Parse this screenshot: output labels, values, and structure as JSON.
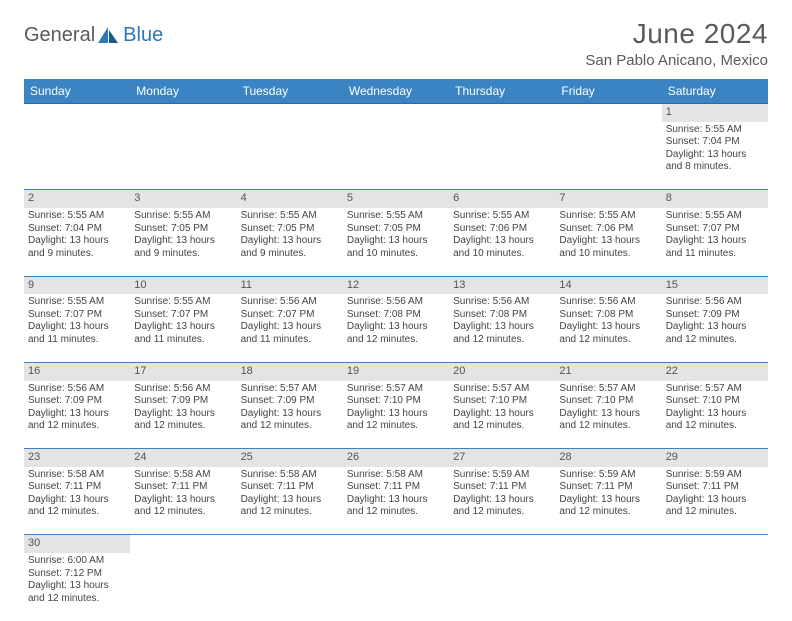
{
  "logo": {
    "general": "General",
    "blue": "Blue"
  },
  "title": "June 2024",
  "location": "San Pablo Anicano, Mexico",
  "colors": {
    "header_bg": "#3a84c4",
    "header_text": "#ffffff",
    "daynum_bg": "#e4e4e4",
    "text": "#444444",
    "title_text": "#5a5a5a",
    "logo_blue": "#2b77b8",
    "border": "#3a84c4"
  },
  "weekdays": [
    "Sunday",
    "Monday",
    "Tuesday",
    "Wednesday",
    "Thursday",
    "Friday",
    "Saturday"
  ],
  "weeks": [
    {
      "nums": [
        "",
        "",
        "",
        "",
        "",
        "",
        "1"
      ],
      "cells": [
        null,
        null,
        null,
        null,
        null,
        null,
        {
          "sunrise": "5:55 AM",
          "sunset": "7:04 PM",
          "daylight": "13 hours and 8 minutes."
        }
      ]
    },
    {
      "nums": [
        "2",
        "3",
        "4",
        "5",
        "6",
        "7",
        "8"
      ],
      "cells": [
        {
          "sunrise": "5:55 AM",
          "sunset": "7:04 PM",
          "daylight": "13 hours and 9 minutes."
        },
        {
          "sunrise": "5:55 AM",
          "sunset": "7:05 PM",
          "daylight": "13 hours and 9 minutes."
        },
        {
          "sunrise": "5:55 AM",
          "sunset": "7:05 PM",
          "daylight": "13 hours and 9 minutes."
        },
        {
          "sunrise": "5:55 AM",
          "sunset": "7:05 PM",
          "daylight": "13 hours and 10 minutes."
        },
        {
          "sunrise": "5:55 AM",
          "sunset": "7:06 PM",
          "daylight": "13 hours and 10 minutes."
        },
        {
          "sunrise": "5:55 AM",
          "sunset": "7:06 PM",
          "daylight": "13 hours and 10 minutes."
        },
        {
          "sunrise": "5:55 AM",
          "sunset": "7:07 PM",
          "daylight": "13 hours and 11 minutes."
        }
      ]
    },
    {
      "nums": [
        "9",
        "10",
        "11",
        "12",
        "13",
        "14",
        "15"
      ],
      "cells": [
        {
          "sunrise": "5:55 AM",
          "sunset": "7:07 PM",
          "daylight": "13 hours and 11 minutes."
        },
        {
          "sunrise": "5:55 AM",
          "sunset": "7:07 PM",
          "daylight": "13 hours and 11 minutes."
        },
        {
          "sunrise": "5:56 AM",
          "sunset": "7:07 PM",
          "daylight": "13 hours and 11 minutes."
        },
        {
          "sunrise": "5:56 AM",
          "sunset": "7:08 PM",
          "daylight": "13 hours and 12 minutes."
        },
        {
          "sunrise": "5:56 AM",
          "sunset": "7:08 PM",
          "daylight": "13 hours and 12 minutes."
        },
        {
          "sunrise": "5:56 AM",
          "sunset": "7:08 PM",
          "daylight": "13 hours and 12 minutes."
        },
        {
          "sunrise": "5:56 AM",
          "sunset": "7:09 PM",
          "daylight": "13 hours and 12 minutes."
        }
      ]
    },
    {
      "nums": [
        "16",
        "17",
        "18",
        "19",
        "20",
        "21",
        "22"
      ],
      "cells": [
        {
          "sunrise": "5:56 AM",
          "sunset": "7:09 PM",
          "daylight": "13 hours and 12 minutes."
        },
        {
          "sunrise": "5:56 AM",
          "sunset": "7:09 PM",
          "daylight": "13 hours and 12 minutes."
        },
        {
          "sunrise": "5:57 AM",
          "sunset": "7:09 PM",
          "daylight": "13 hours and 12 minutes."
        },
        {
          "sunrise": "5:57 AM",
          "sunset": "7:10 PM",
          "daylight": "13 hours and 12 minutes."
        },
        {
          "sunrise": "5:57 AM",
          "sunset": "7:10 PM",
          "daylight": "13 hours and 12 minutes."
        },
        {
          "sunrise": "5:57 AM",
          "sunset": "7:10 PM",
          "daylight": "13 hours and 12 minutes."
        },
        {
          "sunrise": "5:57 AM",
          "sunset": "7:10 PM",
          "daylight": "13 hours and 12 minutes."
        }
      ]
    },
    {
      "nums": [
        "23",
        "24",
        "25",
        "26",
        "27",
        "28",
        "29"
      ],
      "cells": [
        {
          "sunrise": "5:58 AM",
          "sunset": "7:11 PM",
          "daylight": "13 hours and 12 minutes."
        },
        {
          "sunrise": "5:58 AM",
          "sunset": "7:11 PM",
          "daylight": "13 hours and 12 minutes."
        },
        {
          "sunrise": "5:58 AM",
          "sunset": "7:11 PM",
          "daylight": "13 hours and 12 minutes."
        },
        {
          "sunrise": "5:58 AM",
          "sunset": "7:11 PM",
          "daylight": "13 hours and 12 minutes."
        },
        {
          "sunrise": "5:59 AM",
          "sunset": "7:11 PM",
          "daylight": "13 hours and 12 minutes."
        },
        {
          "sunrise": "5:59 AM",
          "sunset": "7:11 PM",
          "daylight": "13 hours and 12 minutes."
        },
        {
          "sunrise": "5:59 AM",
          "sunset": "7:11 PM",
          "daylight": "13 hours and 12 minutes."
        }
      ]
    },
    {
      "nums": [
        "30",
        "",
        "",
        "",
        "",
        "",
        ""
      ],
      "cells": [
        {
          "sunrise": "6:00 AM",
          "sunset": "7:12 PM",
          "daylight": "13 hours and 12 minutes."
        },
        null,
        null,
        null,
        null,
        null,
        null
      ]
    }
  ],
  "labels": {
    "sunrise": "Sunrise: ",
    "sunset": "Sunset: ",
    "daylight": "Daylight: "
  }
}
